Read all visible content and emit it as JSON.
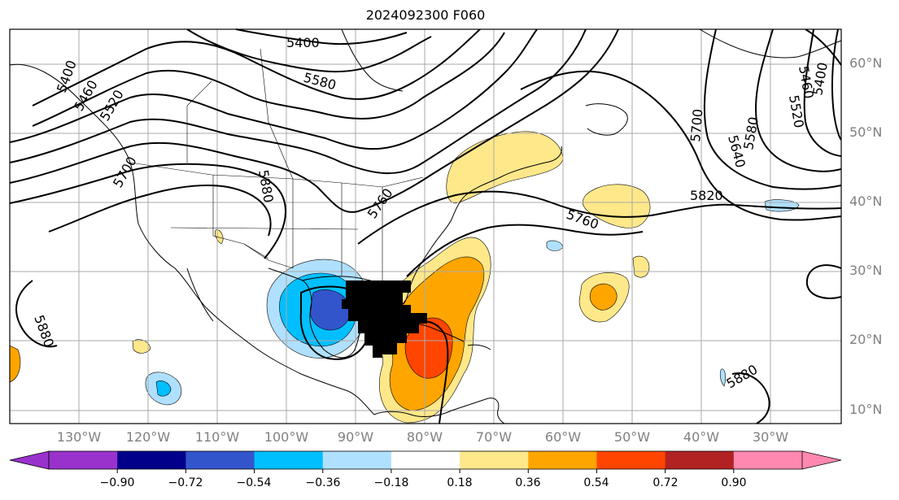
{
  "title": "2024092300 F060",
  "lat_labels": [
    "60°N",
    "50°N",
    "40°N",
    "30°N",
    "20°N",
    "10°N"
  ],
  "lon_labels": [
    "130°W",
    "120°W",
    "110°W",
    "100°W",
    "90°W",
    "80°W",
    "70°W",
    "60°W",
    "50°W",
    "40°W",
    "30°W"
  ],
  "contour_labels": [
    "5400",
    "5580",
    "5460",
    "5520",
    "5700",
    "5880",
    "5760",
    "5820",
    "5760",
    "5700",
    "5640",
    "5580",
    "5520",
    "5460",
    "5400",
    "5880",
    "5880",
    "5400"
  ],
  "colorbar": {
    "ticks": [
      "−0.90",
      "−0.72",
      "−0.54",
      "−0.36",
      "−0.18",
      "0.18",
      "0.36",
      "0.54",
      "0.72",
      "0.90"
    ],
    "colors": [
      "#9932cc",
      "#00008b",
      "#3355cc",
      "#00bfff",
      "#b0e0ff",
      "#ffffff",
      "#ffe88a",
      "#ffa500",
      "#ff4500",
      "#b22222",
      "#ff88b0"
    ]
  }
}
